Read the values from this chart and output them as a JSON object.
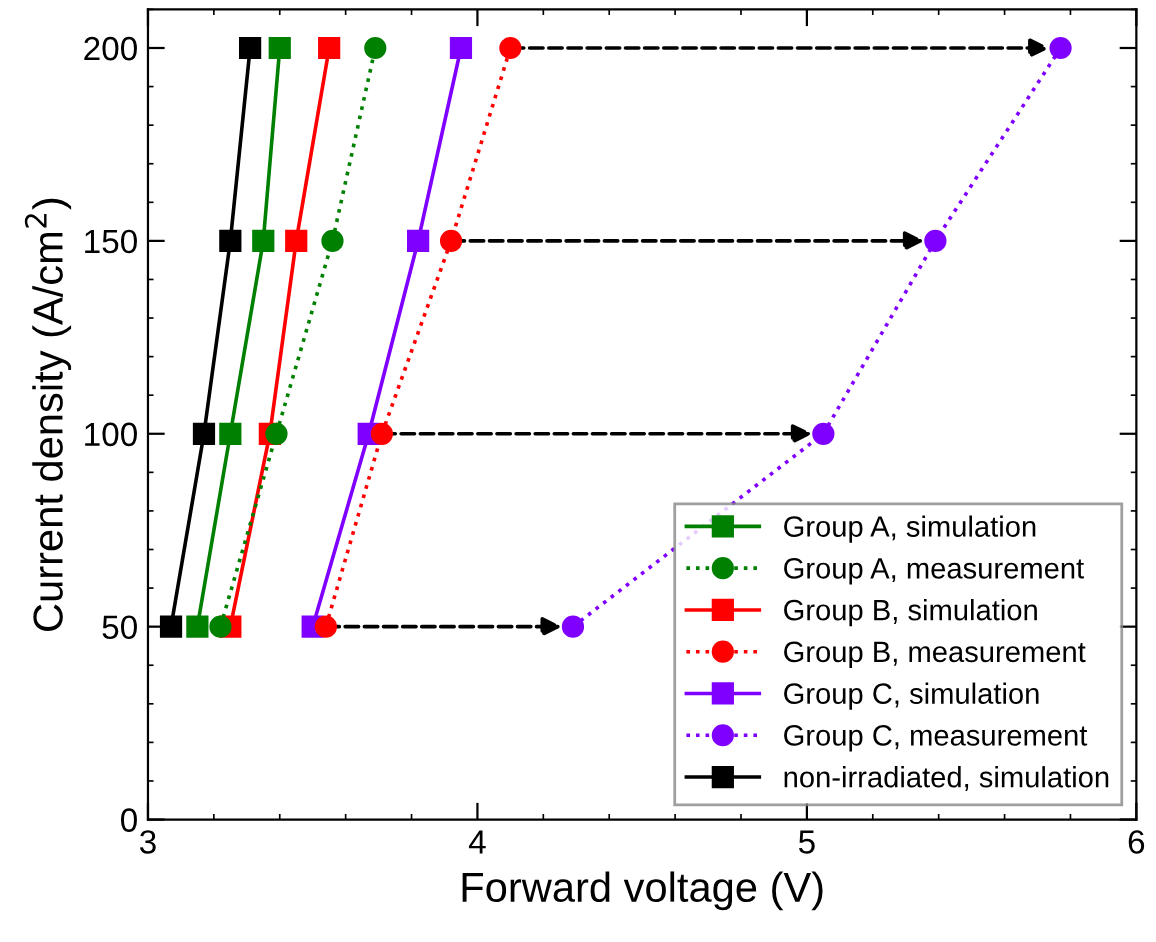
{
  "chart_data": {
    "type": "line",
    "xlabel": "Forward voltage (V)",
    "ylabel": "Current density (A/cm$^{2}$)",
    "xlim": [
      3,
      6
    ],
    "xticks": [
      3,
      4,
      5,
      6
    ],
    "ylim": [
      0,
      210
    ],
    "yticks": [
      0,
      50,
      100,
      150,
      200
    ],
    "grid": false,
    "legend": "bottom right",
    "series": [
      {
        "name": "Group A, simulation",
        "color": "#008000",
        "marker": "square",
        "line_style": "solid",
        "x": [
          3.15,
          3.25,
          3.35,
          3.4
        ],
        "values": [
          50,
          100,
          150,
          200
        ]
      },
      {
        "name": "Group A, measurement",
        "color": "#008000",
        "marker": "circle",
        "line_style": "dotted",
        "x": [
          3.22,
          3.39,
          3.56,
          3.69
        ],
        "values": [
          50,
          100,
          150,
          200
        ]
      },
      {
        "name": "Group B, simulation",
        "color": "#ff0000",
        "marker": "square",
        "line_style": "solid",
        "x": [
          3.25,
          3.37,
          3.45,
          3.55
        ],
        "values": [
          50,
          100,
          150,
          200
        ]
      },
      {
        "name": "Group B, measurement",
        "color": "#ff0000",
        "marker": "circle",
        "line_style": "dotted",
        "x": [
          3.54,
          3.71,
          3.92,
          4.1
        ],
        "values": [
          50,
          100,
          150,
          200
        ]
      },
      {
        "name": "Group C, simulation",
        "color": "#8000ff",
        "marker": "square",
        "line_style": "solid",
        "x": [
          3.5,
          3.67,
          3.82,
          3.95
        ],
        "values": [
          50,
          100,
          150,
          200
        ]
      },
      {
        "name": "Group C, measurement",
        "color": "#8000ff",
        "marker": "circle",
        "line_style": "dotted",
        "x": [
          4.29,
          5.05,
          5.39,
          5.77
        ],
        "values": [
          50,
          100,
          150,
          200
        ]
      },
      {
        "name": "non-irradiated, simulation",
        "color": "#000000",
        "marker": "square",
        "line_style": "solid",
        "x": [
          3.07,
          3.17,
          3.25,
          3.31
        ],
        "values": [
          50,
          100,
          150,
          200
        ]
      }
    ]
  }
}
